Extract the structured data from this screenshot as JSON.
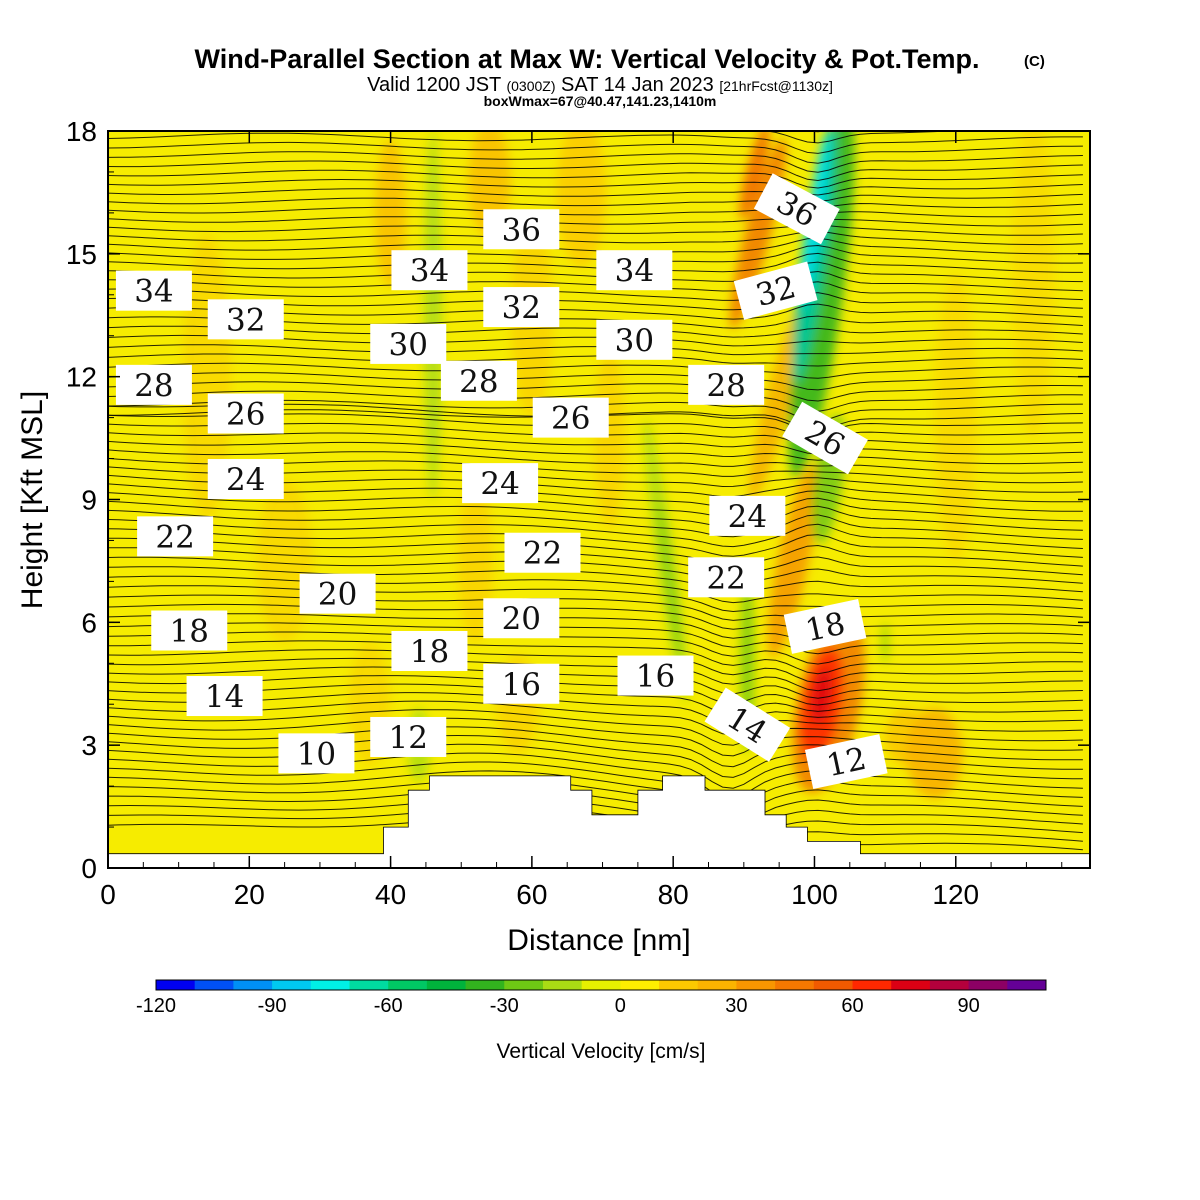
{
  "chart_data": {
    "type": "heatmap",
    "title": "Wind-Parallel Section at Max W: Vertical Velocity & Pot.Temp.",
    "title_mark": "(C)",
    "subtitle": {
      "pre": "Valid 1200 JST ",
      "z": "(0300Z)",
      "mid": " SAT 14 Jan 2023 ",
      "fcst": "[21hrFcst@1130z]"
    },
    "subtitle2": "boxWmax=67@40.47,141.23,1410m",
    "xlabel": "Distance [nm]",
    "ylabel": "Height [Kft MSL]",
    "xlim": [
      0,
      139
    ],
    "ylim": [
      0,
      18
    ],
    "xticks": [
      "0",
      "20",
      "40",
      "60",
      "80",
      "100",
      "120"
    ],
    "yticks": [
      "0",
      "3",
      "6",
      "9",
      "12",
      "15",
      "18"
    ],
    "colorbar": {
      "label": "Vertical Velocity [cm/s]",
      "range": [
        -120,
        110
      ],
      "step": 10,
      "tick_labels": [
        "-120",
        "-90",
        "-60",
        "-30",
        "0",
        "30",
        "60",
        "90"
      ],
      "colors": [
        "#0000f0",
        "#0050f5",
        "#0090f5",
        "#00c8f0",
        "#00f0e6",
        "#00dca0",
        "#00c864",
        "#00b43c",
        "#32b41e",
        "#6ec814",
        "#aadc14",
        "#e6f000",
        "#ffee00",
        "#fcc800",
        "#fbb400",
        "#f99600",
        "#f57800",
        "#f05a00",
        "#ff2800",
        "#dc0014",
        "#b4003c",
        "#8c0064",
        "#640096"
      ]
    },
    "terrain": [
      [
        0,
        0.35
      ],
      [
        39,
        0.35
      ],
      [
        39,
        1.0
      ],
      [
        42.5,
        1.0
      ],
      [
        42.5,
        1.9
      ],
      [
        45.5,
        1.9
      ],
      [
        45.5,
        2.25
      ],
      [
        65.5,
        2.25
      ],
      [
        65.5,
        1.9
      ],
      [
        68.5,
        1.9
      ],
      [
        68.5,
        1.3
      ],
      [
        75,
        1.3
      ],
      [
        75,
        1.9
      ],
      [
        78.5,
        1.9
      ],
      [
        78.5,
        2.25
      ],
      [
        84.5,
        2.25
      ],
      [
        84.5,
        1.9
      ],
      [
        93,
        1.9
      ],
      [
        93,
        1.3
      ],
      [
        96,
        1.3
      ],
      [
        96,
        1.0
      ],
      [
        99,
        1.0
      ],
      [
        99,
        0.65
      ],
      [
        106.5,
        0.65
      ],
      [
        106.5,
        0.35
      ],
      [
        139,
        0.35
      ]
    ],
    "contour_labels": [
      {
        "text": "36",
        "x": 58.5,
        "y": 15.6,
        "rot": 0
      },
      {
        "text": "36",
        "x": 97.5,
        "y": 16.1,
        "rot": 28
      },
      {
        "text": "34",
        "x": 6.5,
        "y": 14.1,
        "rot": 0
      },
      {
        "text": "34",
        "x": 45.5,
        "y": 14.6,
        "rot": 0
      },
      {
        "text": "34",
        "x": 74.5,
        "y": 14.6,
        "rot": 0
      },
      {
        "text": "32",
        "x": 19.5,
        "y": 13.4,
        "rot": 0
      },
      {
        "text": "32",
        "x": 58.5,
        "y": 13.7,
        "rot": 0
      },
      {
        "text": "32",
        "x": 94.5,
        "y": 14.1,
        "rot": -15
      },
      {
        "text": "30",
        "x": 42.5,
        "y": 12.8,
        "rot": 0
      },
      {
        "text": "30",
        "x": 74.5,
        "y": 12.9,
        "rot": 0
      },
      {
        "text": "28",
        "x": 6.5,
        "y": 11.8,
        "rot": 0
      },
      {
        "text": "28",
        "x": 52.5,
        "y": 11.9,
        "rot": 0
      },
      {
        "text": "28",
        "x": 87.5,
        "y": 11.8,
        "rot": 0
      },
      {
        "text": "26",
        "x": 19.5,
        "y": 11.1,
        "rot": 0
      },
      {
        "text": "26",
        "x": 65.5,
        "y": 11.0,
        "rot": 0
      },
      {
        "text": "26",
        "x": 101.5,
        "y": 10.5,
        "rot": 30
      },
      {
        "text": "24",
        "x": 19.5,
        "y": 9.5,
        "rot": 0
      },
      {
        "text": "24",
        "x": 55.5,
        "y": 9.4,
        "rot": 0
      },
      {
        "text": "24",
        "x": 90.5,
        "y": 8.6,
        "rot": 0
      },
      {
        "text": "22",
        "x": 9.5,
        "y": 8.1,
        "rot": 0
      },
      {
        "text": "22",
        "x": 61.5,
        "y": 7.7,
        "rot": 0
      },
      {
        "text": "22",
        "x": 87.5,
        "y": 7.1,
        "rot": 0
      },
      {
        "text": "20",
        "x": 32.5,
        "y": 6.7,
        "rot": 0
      },
      {
        "text": "20",
        "x": 58.5,
        "y": 6.1,
        "rot": 0
      },
      {
        "text": "18",
        "x": 11.5,
        "y": 5.8,
        "rot": 0
      },
      {
        "text": "18",
        "x": 45.5,
        "y": 5.3,
        "rot": 0
      },
      {
        "text": "18",
        "x": 101.5,
        "y": 5.9,
        "rot": -12
      },
      {
        "text": "16",
        "x": 58.5,
        "y": 4.5,
        "rot": 0
      },
      {
        "text": "16",
        "x": 77.5,
        "y": 4.7,
        "rot": 0
      },
      {
        "text": "14",
        "x": 16.5,
        "y": 4.2,
        "rot": 0
      },
      {
        "text": "14",
        "x": 90.5,
        "y": 3.5,
        "rot": 32
      },
      {
        "text": "12",
        "x": 42.5,
        "y": 3.2,
        "rot": 0
      },
      {
        "text": "12",
        "x": 104.5,
        "y": 2.6,
        "rot": -12
      },
      {
        "text": "10",
        "x": 29.5,
        "y": 2.8,
        "rot": 0
      }
    ]
  }
}
